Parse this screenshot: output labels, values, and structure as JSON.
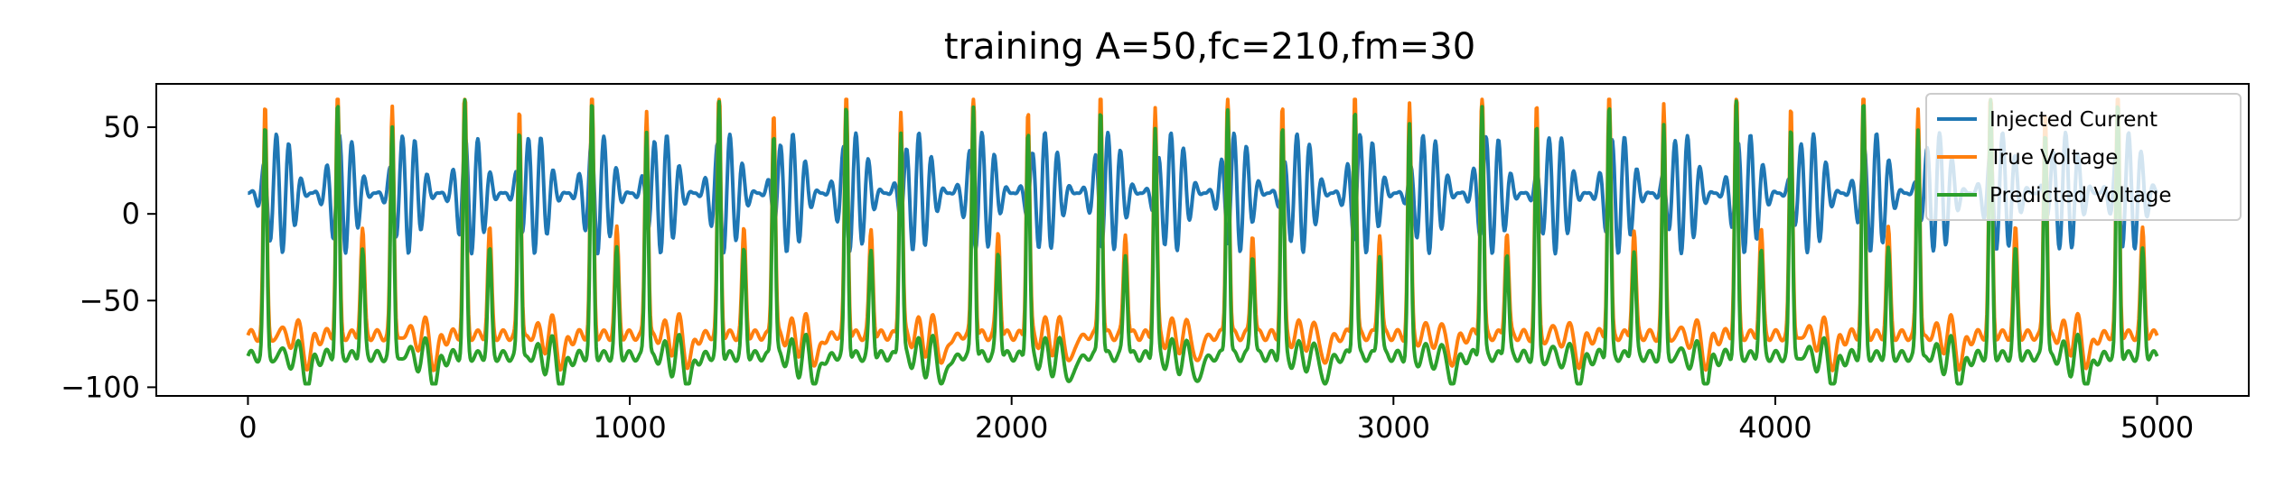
{
  "chart_data": {
    "type": "line",
    "title": "training A=50,fc=210,fm=30",
    "xlabel": "",
    "ylabel": "",
    "xlim": [
      -240,
      5240
    ],
    "ylim": [
      -105,
      75
    ],
    "xticks": [
      0,
      1000,
      2000,
      3000,
      4000,
      5000
    ],
    "xtick_labels": [
      "0",
      "1000",
      "2000",
      "3000",
      "4000",
      "5000"
    ],
    "yticks": [
      50,
      0,
      -50,
      -100
    ],
    "ytick_labels": [
      "50",
      "0",
      "−50",
      "−100"
    ],
    "grid": false,
    "legend_position": "top-right",
    "x_range": [
      0,
      5000
    ],
    "series": [
      {
        "name": "Injected Current",
        "color": "#1f77b4",
        "sample_points": [
          [
            0,
            0
          ],
          [
            20,
            12
          ],
          [
            45,
            30
          ],
          [
            70,
            -32
          ],
          [
            100,
            45
          ],
          [
            130,
            12
          ],
          [
            160,
            2
          ],
          [
            200,
            12
          ],
          [
            230,
            -30
          ],
          [
            260,
            45
          ],
          [
            300,
            12
          ]
        ],
        "period": 167,
        "amplitude_range": [
          -32,
          46
        ]
      },
      {
        "name": "True Voltage",
        "color": "#ff7f0e",
        "sample_points": [
          [
            0,
            -66
          ],
          [
            30,
            -62
          ],
          [
            45,
            48
          ],
          [
            60,
            -72
          ],
          [
            120,
            -68
          ],
          [
            160,
            -95
          ],
          [
            200,
            -66
          ],
          [
            235,
            65
          ],
          [
            260,
            -75
          ]
        ],
        "period": 333,
        "amplitude_range": [
          -95,
          65
        ]
      },
      {
        "name": "Predicted Voltage",
        "color": "#2ca02c",
        "sample_points": [
          [
            0,
            -80
          ],
          [
            30,
            -78
          ],
          [
            45,
            48
          ],
          [
            60,
            -80
          ],
          [
            120,
            -82
          ],
          [
            160,
            -97
          ],
          [
            200,
            -80
          ],
          [
            235,
            65
          ],
          [
            260,
            -85
          ]
        ],
        "period": 333,
        "amplitude_range": [
          -97,
          65
        ]
      }
    ]
  }
}
